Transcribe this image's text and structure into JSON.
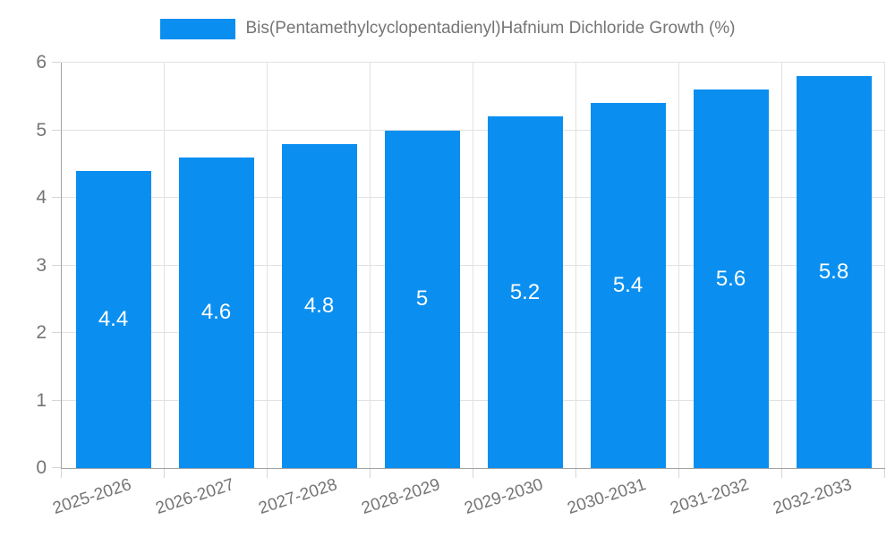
{
  "chart_data": {
    "type": "bar",
    "title": "Bis(Pentamethylcyclopentadienyl)Hafnium Dichloride Growth (%)",
    "legend_entries": [
      "Bis(Pentamethylcyclopentadienyl)Hafnium Dichloride Growth (%)"
    ],
    "legend_position": "top-center",
    "categories": [
      "2025-2026",
      "2026-2027",
      "2027-2028",
      "2028-2029",
      "2029-2030",
      "2030-2031",
      "2031-2032",
      "2032-2033"
    ],
    "values": [
      4.4,
      4.6,
      4.8,
      5,
      5.2,
      5.4,
      5.6,
      5.8
    ],
    "value_labels": [
      "4.4",
      "4.6",
      "4.8",
      "5",
      "5.2",
      "5.4",
      "5.6",
      "5.8"
    ],
    "xlabel": "",
    "ylabel": "",
    "ylim": [
      0,
      6
    ],
    "yticks": [
      "0",
      "1",
      "2",
      "3",
      "4",
      "5",
      "6"
    ],
    "grid": true,
    "colors": {
      "bar": "#0a8ff0",
      "bar_value_text": "#ffffff",
      "axis_line": "#a3a3a3",
      "gridline": "#e2e2e2",
      "tick_mark": "#d6d6d6",
      "tick_text": "#757575",
      "legend_text": "#757575",
      "background": "#ffffff"
    }
  }
}
